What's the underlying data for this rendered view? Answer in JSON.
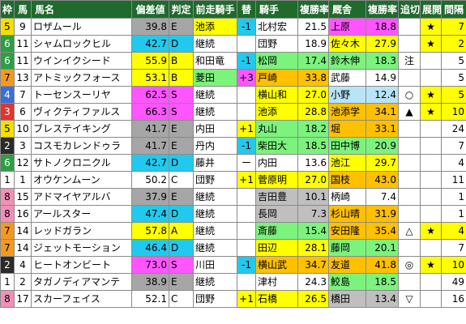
{
  "headers": {
    "waku": "枠",
    "num": "馬",
    "name": "馬名",
    "score": "偏差値",
    "grade": "判定",
    "prev_jockey": "前走騎手",
    "change": "替",
    "jockey": "騎手",
    "jockey_rate": "複勝率",
    "stable": "厩舎",
    "stable_rate": "複勝率",
    "oikiri": "追切",
    "tenkai": "展開",
    "rest": "間隔"
  },
  "colors": {
    "header_bg": "#1f6a2c",
    "score_cyan": "#22c9ee",
    "score_gray": "#a6a6a6",
    "yellow": "#ffff00",
    "orange": "#ffc000",
    "magenta": "#ff55ff",
    "gray": "#bfbfbf",
    "lightgreen": "#7cf37c",
    "lightblue": "#b9e4f7",
    "white": "#ffffff"
  },
  "rows": [
    {
      "waku": "5",
      "num": "9",
      "name": "ロザムール",
      "score": "39.8",
      "grade": "E",
      "prev": "池添",
      "change": "-1",
      "jockey": "北村宏",
      "jrate": "21.5",
      "stable": "上原",
      "srate": "18.8",
      "oikiri": "",
      "tenkai": "★",
      "rest": "7",
      "scoreBg": "gray",
      "prevBg": "yellow",
      "changeBg": "cyan",
      "jockeyBg": "white",
      "stableBg": "magenta"
    },
    {
      "waku": "6",
      "num": "11",
      "name": "シャムロックヒル",
      "score": "42.7",
      "grade": "D",
      "prev": "継続",
      "change": "",
      "jockey": "団野",
      "jrate": "18.9",
      "stable": "佐々木",
      "srate": "27.9",
      "oikiri": "",
      "tenkai": "★",
      "rest": "2",
      "scoreBg": "cyan",
      "prevBg": "white",
      "changeBg": "white",
      "jockeyBg": "white",
      "stableBg": "yellow"
    },
    {
      "waku": "6",
      "num": "11",
      "name": "ウインイクシード",
      "score": "55.9",
      "grade": "B",
      "prev": "和田竜",
      "change": "-1",
      "jockey": "松岡",
      "jrate": "17.4",
      "stable": "鈴木伸",
      "srate": "18.3",
      "oikiri": "注",
      "tenkai": "",
      "rest": "5",
      "scoreBg": "yellow",
      "prevBg": "white",
      "changeBg": "cyan",
      "jockeyBg": "lightgreen",
      "stableBg": "lightgreen"
    },
    {
      "waku": "7",
      "num": "13",
      "name": "アトミックフォース",
      "score": "53.1",
      "grade": "B",
      "prev": "菱田",
      "change": "+3",
      "jockey": "戸崎",
      "jrate": "33.8",
      "stable": "武藤",
      "srate": "14.9",
      "oikiri": "",
      "tenkai": "",
      "rest": "5",
      "scoreBg": "yellow",
      "prevBg": "lightgreen",
      "changeBg": "magenta",
      "jockeyBg": "orange",
      "stableBg": "white"
    },
    {
      "waku": "4",
      "num": "7",
      "name": "トーセンスーリヤ",
      "score": "62.5",
      "grade": "S",
      "prev": "継続",
      "change": "",
      "jockey": "横山和",
      "jrate": "27.0",
      "stable": "小野",
      "srate": "12.4",
      "oikiri": "○",
      "tenkai": "★",
      "rest": "5",
      "scoreBg": "magenta",
      "prevBg": "white",
      "changeBg": "white",
      "jockeyBg": "yellow",
      "stableBg": "lightblue"
    },
    {
      "waku": "3",
      "num": "6",
      "name": "ヴィクティファルス",
      "score": "66.3",
      "grade": "S",
      "prev": "継続",
      "change": "",
      "jockey": "池添",
      "jrate": "28.8",
      "stable": "池添学",
      "srate": "34.1",
      "oikiri": "▲",
      "tenkai": "★",
      "rest": "10",
      "scoreBg": "magenta",
      "prevBg": "white",
      "changeBg": "white",
      "jockeyBg": "yellow",
      "stableBg": "orange"
    },
    {
      "waku": "5",
      "num": "10",
      "name": "ブレステイキング",
      "score": "41.7",
      "grade": "E",
      "prev": "内田",
      "change": "+1",
      "jockey": "丸山",
      "jrate": "18.2",
      "stable": "堀",
      "srate": "33.1",
      "oikiri": "",
      "tenkai": "",
      "rest": "24",
      "scoreBg": "gray",
      "prevBg": "white",
      "changeBg": "yellow",
      "jockeyBg": "lightgreen",
      "stableBg": "orange"
    },
    {
      "waku": "2",
      "num": "3",
      "name": "コスモカレンドゥラ",
      "score": "41.7",
      "grade": "E",
      "prev": "丹内",
      "change": "-1",
      "jockey": "柴田大",
      "jrate": "18.5",
      "stable": "田中博",
      "srate": "20.9",
      "oikiri": "",
      "tenkai": "",
      "rest": "7",
      "scoreBg": "gray",
      "prevBg": "white",
      "changeBg": "cyan",
      "jockeyBg": "lightgreen",
      "stableBg": "lightgreen"
    },
    {
      "waku": "6",
      "num": "12",
      "name": "サトノクロニクル",
      "score": "42.7",
      "grade": "D",
      "prev": "藤井",
      "change": "ー",
      "jockey": "内田",
      "jrate": "13.6",
      "stable": "池江",
      "srate": "29.7",
      "oikiri": "",
      "tenkai": "",
      "rest": "4",
      "scoreBg": "cyan",
      "prevBg": "white",
      "changeBg": "white",
      "jockeyBg": "white",
      "stableBg": "yellow"
    },
    {
      "waku": "1",
      "num": "1",
      "name": "オウケンムーン",
      "score": "50.2",
      "grade": "C",
      "prev": "団野",
      "change": "+1",
      "jockey": "菅原明",
      "jrate": "27.0",
      "stable": "国枝",
      "srate": "43.0",
      "oikiri": "",
      "tenkai": "",
      "rest": "11",
      "scoreBg": "white",
      "prevBg": "white",
      "changeBg": "yellow",
      "jockeyBg": "yellow",
      "stableBg": "orange"
    },
    {
      "waku": "8",
      "num": "15",
      "name": "アドマイヤアルバ",
      "score": "37.9",
      "grade": "E",
      "prev": "継続",
      "change": "",
      "jockey": "吉田豊",
      "jrate": "10.1",
      "stable": "柄崎",
      "srate": "7.4",
      "oikiri": "",
      "tenkai": "",
      "rest": "1",
      "scoreBg": "gray",
      "prevBg": "white",
      "changeBg": "white",
      "jockeyBg": "gray",
      "stableBg": "white"
    },
    {
      "waku": "8",
      "num": "16",
      "name": "アールスター",
      "score": "47.4",
      "grade": "D",
      "prev": "継続",
      "change": "",
      "jockey": "長岡",
      "jrate": "7.3",
      "stable": "杉山晴",
      "srate": "31.9",
      "oikiri": "",
      "tenkai": "",
      "rest": "1",
      "scoreBg": "cyan",
      "prevBg": "white",
      "changeBg": "white",
      "jockeyBg": "gray",
      "stableBg": "orange"
    },
    {
      "waku": "7",
      "num": "14",
      "name": "レッドガラン",
      "score": "57.8",
      "grade": "A",
      "prev": "継続",
      "change": "",
      "jockey": "斎藤",
      "jrate": "15.4",
      "stable": "安田隆",
      "srate": "35.4",
      "oikiri": "△",
      "tenkai": "★",
      "rest": "4",
      "scoreBg": "yellow",
      "prevBg": "white",
      "changeBg": "white",
      "jockeyBg": "lightgreen",
      "stableBg": "orange"
    },
    {
      "waku": "7",
      "num": "14",
      "name": "ジェットモーション",
      "score": "46.4",
      "grade": "D",
      "prev": "継続",
      "change": "",
      "jockey": "田辺",
      "jrate": "28.1",
      "stable": "藤岡",
      "srate": "20.1",
      "oikiri": "",
      "tenkai": "",
      "rest": "7",
      "scoreBg": "cyan",
      "prevBg": "white",
      "changeBg": "white",
      "jockeyBg": "yellow",
      "stableBg": "lightgreen"
    },
    {
      "waku": "2",
      "num": "4",
      "name": "ヒートオンビート",
      "score": "73.0",
      "grade": "S",
      "prev": "川田",
      "change": "-1",
      "jockey": "横山武",
      "jrate": "34.7",
      "stable": "友道",
      "srate": "41.8",
      "oikiri": "◎",
      "tenkai": "★",
      "rest": "10",
      "scoreBg": "magenta",
      "prevBg": "white",
      "changeBg": "cyan",
      "jockeyBg": "orange",
      "stableBg": "orange"
    },
    {
      "waku": "1",
      "num": "2",
      "name": "タガノディアマンテ",
      "score": "38.9",
      "grade": "E",
      "prev": "継続",
      "change": "",
      "jockey": "津村",
      "jrate": "24.3",
      "stable": "鮫島",
      "srate": "18.5",
      "oikiri": "",
      "tenkai": "",
      "rest": "49",
      "scoreBg": "gray",
      "prevBg": "white",
      "changeBg": "white",
      "jockeyBg": "white",
      "stableBg": "lightgreen"
    },
    {
      "waku": "8",
      "num": "17",
      "name": "スカーフェイス",
      "score": "52.1",
      "grade": "C",
      "prev": "団野",
      "change": "+1",
      "jockey": "石橋",
      "jrate": "26.5",
      "stable": "橋田",
      "srate": "13.4",
      "oikiri": "▽",
      "tenkai": "",
      "rest": "16",
      "scoreBg": "white",
      "prevBg": "white",
      "changeBg": "yellow",
      "jockeyBg": "yellow",
      "stableBg": "gray"
    }
  ]
}
